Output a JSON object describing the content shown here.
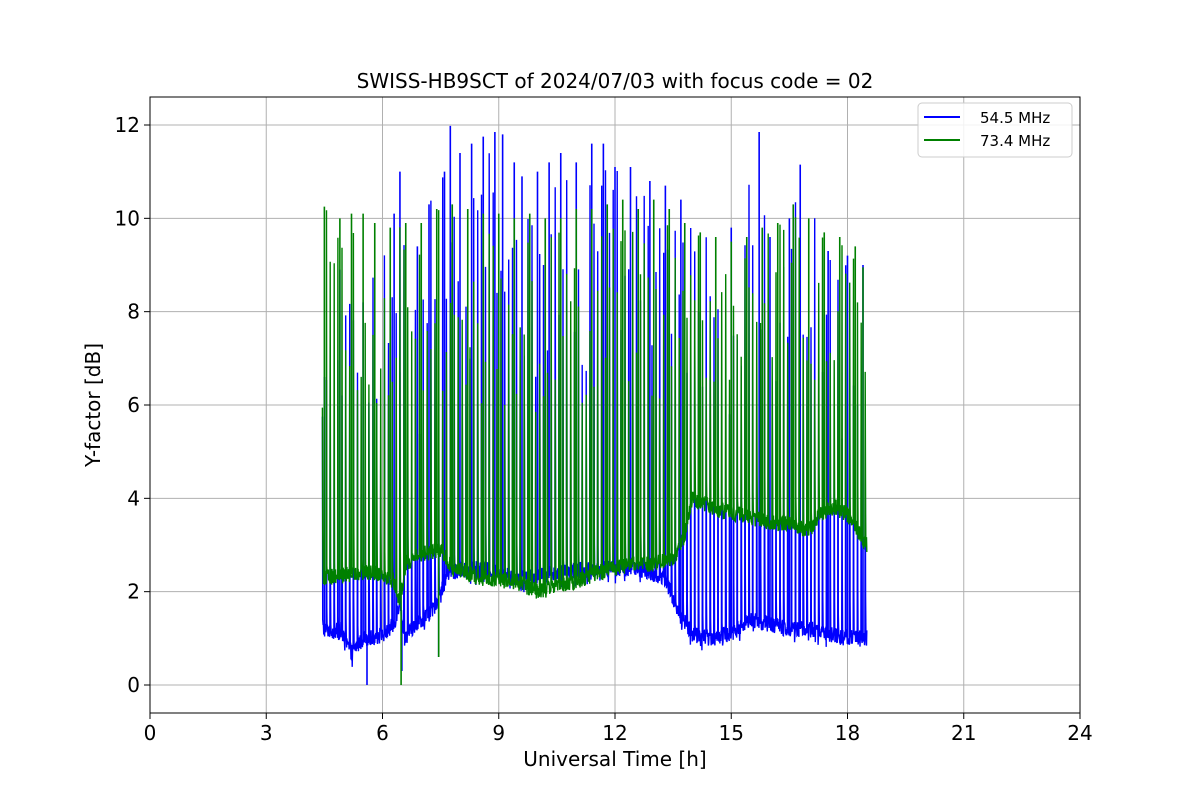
{
  "chart_data": {
    "type": "line",
    "title": "SWISS-HB9SCT of 2024/07/03 with focus code = 02",
    "xlabel": "Universal Time [h]",
    "ylabel": "Y-factor [dB]",
    "xlim": [
      0,
      24
    ],
    "ylim": [
      -0.6,
      12.6
    ],
    "xticks": [
      "0",
      "3",
      "6",
      "9",
      "12",
      "15",
      "18",
      "21",
      "24"
    ],
    "yticks": [
      "0",
      "2",
      "4",
      "6",
      "8",
      "10",
      "12"
    ],
    "grid": true,
    "legend_position": "top-right",
    "series": [
      {
        "name": "54.5 MHz",
        "color": "#0000ff",
        "baseline": [
          [
            4.45,
            1.2
          ],
          [
            4.9,
            1.15
          ],
          [
            5.2,
            0.7
          ],
          [
            5.5,
            1.0
          ],
          [
            6.0,
            1.05
          ],
          [
            6.3,
            1.3
          ],
          [
            6.45,
            1.8
          ],
          [
            6.55,
            1.0
          ],
          [
            7.0,
            1.4
          ],
          [
            7.3,
            1.6
          ],
          [
            7.5,
            2.0
          ],
          [
            7.7,
            2.4
          ],
          [
            8.5,
            2.5
          ],
          [
            9.5,
            2.3
          ],
          [
            10.5,
            2.4
          ],
          [
            11.5,
            2.5
          ],
          [
            12.5,
            2.5
          ],
          [
            13.3,
            2.3
          ],
          [
            13.6,
            1.6
          ],
          [
            14.0,
            1.1
          ],
          [
            14.5,
            1.0
          ],
          [
            15.0,
            1.1
          ],
          [
            15.5,
            1.4
          ],
          [
            16.0,
            1.3
          ],
          [
            16.5,
            1.2
          ],
          [
            17.0,
            1.2
          ],
          [
            17.5,
            1.1
          ],
          [
            18.0,
            1.0
          ],
          [
            18.5,
            1.0
          ]
        ],
        "peaks": [
          [
            4.5,
            6.6
          ],
          [
            4.9,
            8.9
          ],
          [
            5.5,
            8.2
          ],
          [
            6.3,
            10.1
          ],
          [
            6.45,
            11.0
          ],
          [
            6.9,
            9.4
          ],
          [
            7.2,
            10.3
          ],
          [
            7.6,
            11.0
          ],
          [
            7.75,
            11.98
          ],
          [
            8.0,
            11.4
          ],
          [
            8.3,
            11.6
          ],
          [
            8.6,
            11.75
          ],
          [
            8.9,
            11.85
          ],
          [
            9.1,
            11.8
          ],
          [
            9.4,
            11.2
          ],
          [
            9.6,
            10.9
          ],
          [
            10.0,
            11.0
          ],
          [
            10.3,
            11.2
          ],
          [
            10.6,
            11.4
          ],
          [
            11.0,
            11.2
          ],
          [
            11.4,
            11.6
          ],
          [
            11.7,
            11.6
          ],
          [
            12.0,
            11.1
          ],
          [
            12.4,
            11.1
          ],
          [
            12.9,
            10.8
          ],
          [
            13.3,
            10.7
          ],
          [
            13.7,
            10.4
          ],
          [
            15.0,
            9.8
          ],
          [
            15.72,
            11.85
          ],
          [
            16.0,
            9.6
          ],
          [
            16.5,
            10.0
          ],
          [
            16.78,
            11.15
          ],
          [
            17.5,
            9.3
          ],
          [
            18.0,
            9.2
          ],
          [
            18.4,
            9.0
          ]
        ],
        "dips": [
          [
            5.6,
            0.0
          ],
          [
            6.5,
            0.3
          ],
          [
            7.45,
            0.6
          ]
        ]
      },
      {
        "name": "73.4 MHz",
        "color": "#008000",
        "baseline": [
          [
            4.45,
            2.3
          ],
          [
            5.0,
            2.35
          ],
          [
            5.5,
            2.4
          ],
          [
            6.0,
            2.4
          ],
          [
            6.3,
            2.2
          ],
          [
            6.45,
            1.8
          ],
          [
            6.6,
            2.6
          ],
          [
            7.0,
            2.8
          ],
          [
            7.5,
            2.9
          ],
          [
            7.8,
            2.5
          ],
          [
            8.5,
            2.3
          ],
          [
            9.0,
            2.25
          ],
          [
            9.5,
            2.2
          ],
          [
            10.0,
            2.0
          ],
          [
            10.5,
            2.1
          ],
          [
            11.0,
            2.2
          ],
          [
            11.5,
            2.4
          ],
          [
            12.0,
            2.5
          ],
          [
            12.5,
            2.6
          ],
          [
            13.0,
            2.6
          ],
          [
            13.5,
            2.7
          ],
          [
            13.8,
            3.2
          ],
          [
            14.0,
            4.0
          ],
          [
            14.3,
            3.9
          ],
          [
            14.7,
            3.75
          ],
          [
            15.0,
            3.7
          ],
          [
            15.5,
            3.6
          ],
          [
            16.0,
            3.45
          ],
          [
            16.5,
            3.5
          ],
          [
            17.0,
            3.3
          ],
          [
            17.3,
            3.7
          ],
          [
            17.7,
            3.8
          ],
          [
            18.0,
            3.65
          ],
          [
            18.5,
            3.0
          ]
        ],
        "peaks": [
          [
            4.5,
            10.25
          ],
          [
            4.9,
            10.0
          ],
          [
            5.2,
            10.1
          ],
          [
            5.5,
            10.1
          ],
          [
            5.8,
            9.9
          ],
          [
            6.2,
            9.8
          ],
          [
            6.6,
            9.9
          ],
          [
            7.0,
            9.9
          ],
          [
            7.4,
            10.2
          ],
          [
            7.8,
            10.3
          ],
          [
            8.2,
            10.2
          ],
          [
            8.6,
            10.1
          ],
          [
            9.0,
            10.1
          ],
          [
            9.4,
            10.0
          ],
          [
            9.8,
            10.1
          ],
          [
            10.2,
            10.0
          ],
          [
            10.6,
            10.0
          ],
          [
            11.0,
            10.2
          ],
          [
            11.4,
            10.2
          ],
          [
            11.8,
            10.3
          ],
          [
            12.2,
            10.4
          ],
          [
            12.6,
            10.2
          ],
          [
            13.0,
            10.4
          ],
          [
            13.4,
            10.2
          ],
          [
            13.8,
            9.9
          ],
          [
            14.2,
            9.7
          ],
          [
            14.6,
            9.6
          ],
          [
            15.0,
            9.5
          ],
          [
            15.4,
            9.6
          ],
          [
            15.8,
            9.8
          ],
          [
            16.2,
            9.9
          ],
          [
            16.6,
            10.3
          ],
          [
            17.0,
            10.0
          ],
          [
            17.4,
            9.7
          ],
          [
            17.8,
            9.6
          ],
          [
            18.2,
            9.4
          ],
          [
            18.4,
            8.95
          ]
        ],
        "dips": [
          [
            6.48,
            0.0
          ],
          [
            7.45,
            0.6
          ]
        ]
      }
    ]
  }
}
